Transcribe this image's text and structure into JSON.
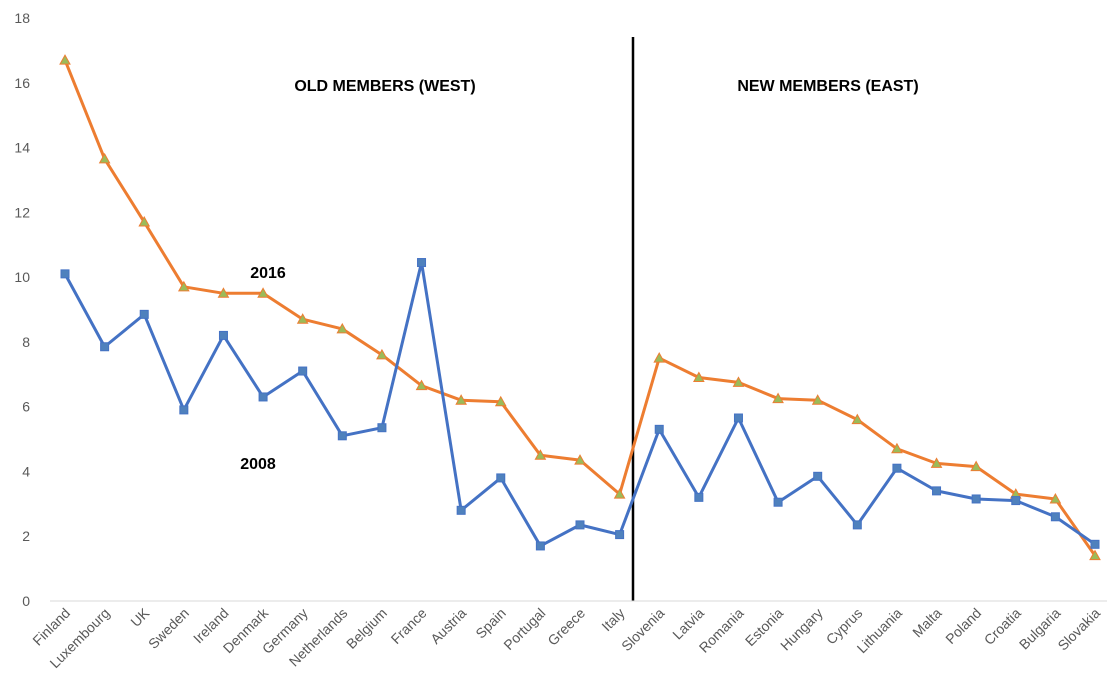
{
  "chart_data": {
    "type": "line",
    "categories": [
      "Finland",
      "Luxembourg",
      "UK",
      "Sweden",
      "Ireland",
      "Denmark",
      "Germany",
      "Netherlands",
      "Belgium",
      "France",
      "Austria",
      "Spain",
      "Portugal",
      "Greece",
      "Italy",
      "Slovenia",
      "Latvia",
      "Romania",
      "Estonia",
      "Hungary",
      "Cyprus",
      "Lithuania",
      "Malta",
      "Poland",
      "Croatia",
      "Bulgaria",
      "Slovakia"
    ],
    "series": [
      {
        "name": "2016",
        "color": "#ed7d31",
        "marker_color": "#9bbb59",
        "marker": "triangle",
        "values": [
          16.7,
          13.65,
          11.7,
          9.7,
          9.5,
          9.5,
          8.7,
          8.4,
          7.6,
          6.65,
          6.2,
          6.15,
          4.5,
          4.35,
          3.3,
          7.5,
          6.9,
          6.75,
          6.25,
          6.2,
          5.6,
          4.7,
          4.25,
          4.15,
          3.3,
          3.15,
          1.4
        ]
      },
      {
        "name": "2008",
        "color": "#4472c4",
        "marker_color": "#4f81bd",
        "marker": "square",
        "values": [
          10.1,
          7.85,
          8.85,
          5.9,
          8.2,
          6.3,
          7.1,
          5.1,
          5.35,
          10.45,
          2.8,
          3.8,
          1.7,
          2.35,
          2.05,
          5.3,
          3.2,
          5.65,
          3.05,
          3.85,
          2.35,
          4.1,
          3.4,
          3.15,
          3.1,
          2.6,
          1.75
        ]
      }
    ],
    "annotations": [
      "OLD MEMBERS (WEST)",
      "NEW MEMBERS (EAST)"
    ],
    "ylim": [
      0,
      18
    ],
    "yticks": [
      0,
      2,
      4,
      6,
      8,
      10,
      12,
      14,
      16,
      18
    ],
    "grid": false
  }
}
